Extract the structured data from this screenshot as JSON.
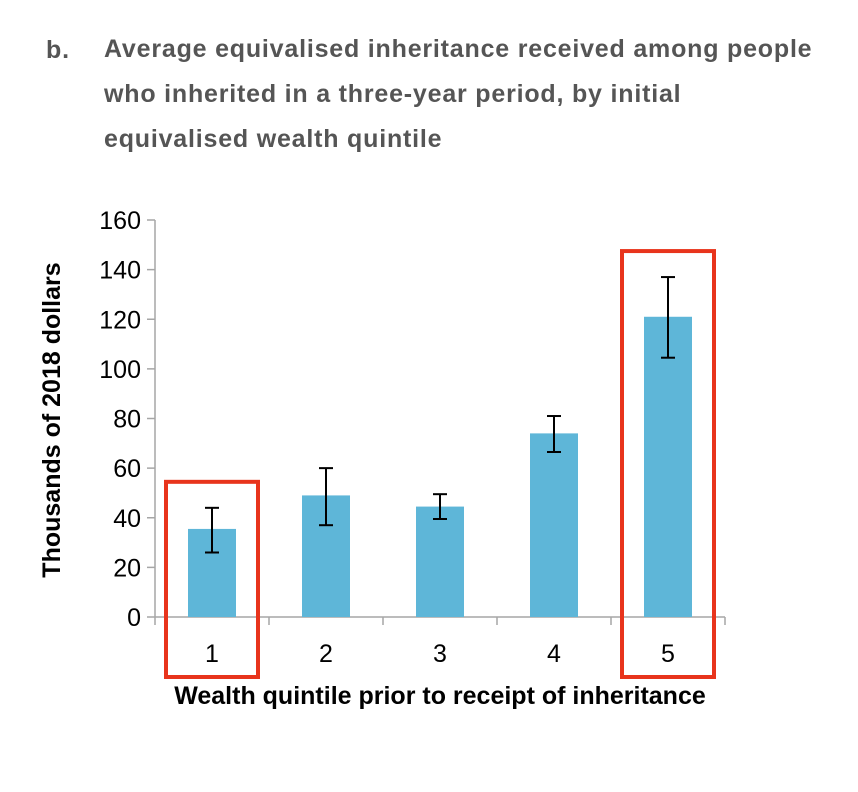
{
  "panel": {
    "label": "b.",
    "title": "Average equivalised inheritance received among people who inherited in a three-year period, by initial equivalised wealth quintile"
  },
  "chart_data": {
    "type": "bar",
    "categories": [
      "1",
      "2",
      "3",
      "4",
      "5"
    ],
    "values": [
      35.5,
      49,
      44.5,
      74,
      121
    ],
    "error_bars": {
      "low": [
        26,
        37,
        39.5,
        66.5,
        104.5
      ],
      "high": [
        44,
        60,
        49.5,
        81,
        137
      ]
    },
    "highlighted_categories": [
      "1",
      "5"
    ],
    "xlabel": "Wealth quintile prior to receipt of inheritance",
    "ylabel": "Thousands of 2018 dollars",
    "ylim": [
      0,
      160
    ],
    "yticks": [
      0,
      20,
      40,
      60,
      80,
      100,
      120,
      140,
      160
    ],
    "grid": false,
    "legend": "none",
    "colors": {
      "bar": "#5eb6d8",
      "error_bar": "#000000",
      "highlight_box": "#e8341c",
      "axis": "#a6a6a6"
    }
  }
}
